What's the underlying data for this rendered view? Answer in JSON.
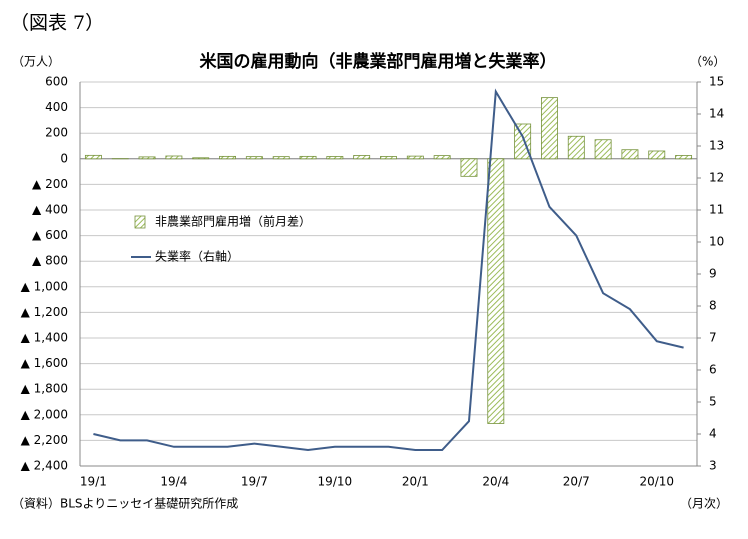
{
  "figure_label": "（図表 7）",
  "chart_data": {
    "type": "bar_line",
    "title": "米国の雇用動向（非農業部門雇用増と失業率）",
    "y_unit": "（万人）",
    "y2_unit": "（%）",
    "x_unit": "（月次）",
    "source": "（資料）BLSよりニッセイ基礎研究所作成",
    "categories": [
      "19/1",
      null,
      null,
      "19/4",
      null,
      null,
      "19/7",
      null,
      null,
      "19/10",
      null,
      null,
      "20/1",
      null,
      null,
      "20/4",
      null,
      null,
      "20/7",
      null,
      null,
      "20/10",
      null
    ],
    "ylim": [
      -2400,
      600
    ],
    "yticks": [
      600,
      400,
      200,
      0,
      {
        "value": -200,
        "label": "▲ 200"
      },
      {
        "value": -400,
        "label": "▲ 400"
      },
      {
        "value": -600,
        "label": "▲ 600"
      },
      {
        "value": -800,
        "label": "▲ 800"
      },
      {
        "value": -1000,
        "label": "▲ 1,000"
      },
      {
        "value": -1200,
        "label": "▲ 1,200"
      },
      {
        "value": -1400,
        "label": "▲ 1,400"
      },
      {
        "value": -1600,
        "label": "▲ 1,600"
      },
      {
        "value": -1800,
        "label": "▲ 1,800"
      },
      {
        "value": -2000,
        "label": "▲ 2,000"
      },
      {
        "value": -2200,
        "label": "▲ 2,200"
      },
      {
        "value": -2400,
        "label": "▲ 2,400"
      }
    ],
    "y2lim": [
      3,
      15
    ],
    "y2ticks": [
      3,
      4,
      5,
      6,
      7,
      8,
      9,
      10,
      11,
      12,
      13,
      14,
      15
    ],
    "grid": true,
    "legend": "upper left",
    "series": [
      {
        "name": "非農業部門雇用増（前月差）",
        "type": "bar",
        "color": "#c3d69b",
        "edge_color": "#76923c",
        "values": [
          27,
          1,
          15,
          22,
          8,
          19,
          17,
          17,
          19,
          18,
          26,
          18,
          21,
          25,
          -137,
          -2068,
          272,
          478,
          176,
          149,
          71,
          61,
          26
        ]
      },
      {
        "name": "失業率（右軸）",
        "type": "line",
        "axis": "y2",
        "color": "#3f5d8a",
        "values": [
          4.0,
          3.8,
          3.8,
          3.6,
          3.6,
          3.6,
          3.7,
          3.6,
          3.5,
          3.6,
          3.6,
          3.6,
          3.5,
          3.5,
          4.4,
          14.7,
          13.3,
          11.1,
          10.2,
          8.4,
          7.9,
          6.9,
          6.7
        ]
      }
    ]
  }
}
